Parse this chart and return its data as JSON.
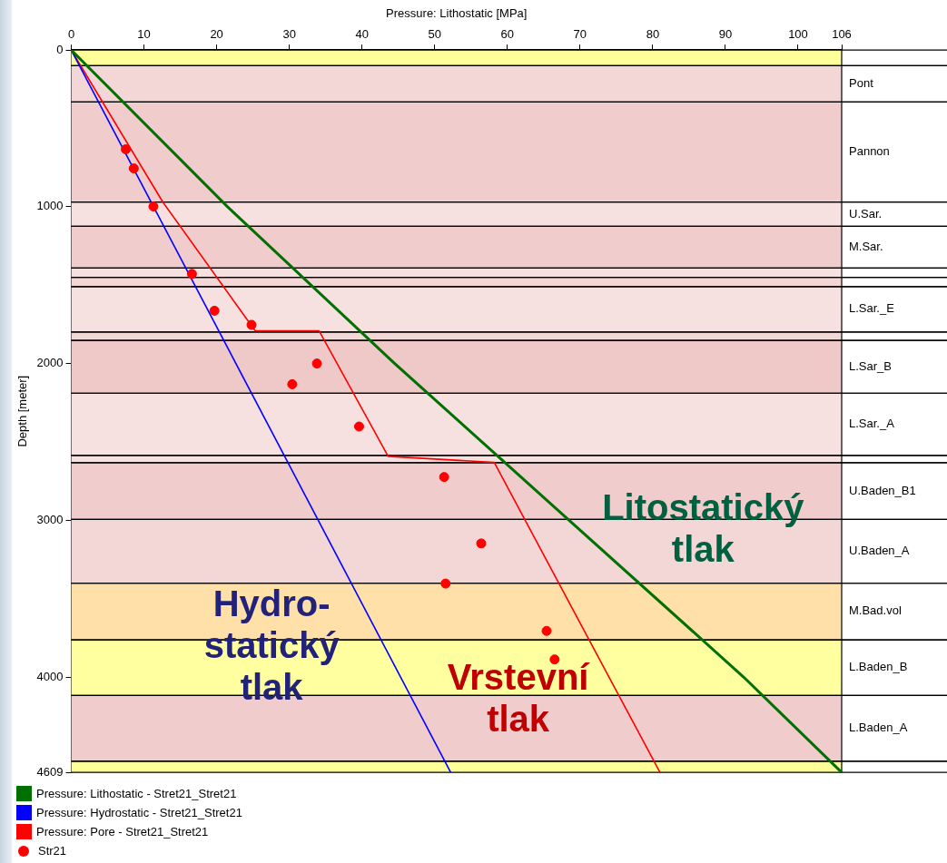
{
  "chart_data": {
    "type": "line",
    "xlabel": "Pressure: Lithostatic [MPa]",
    "ylabel": "Depth [meter]",
    "xlim": [
      0,
      106
    ],
    "xticks": [
      0,
      10,
      20,
      30,
      40,
      50,
      60,
      70,
      80,
      90,
      100,
      106
    ],
    "ylim": [
      4609,
      0
    ],
    "yticks": [
      0,
      1000,
      2000,
      3000,
      4000,
      4609
    ],
    "legend": "bottom left",
    "line_style": "solid",
    "series": [
      {
        "name": "Pressure: Lithostatic - Stret21_Stret21",
        "color": "#007000",
        "marker": "none",
        "x": [
          0,
          21.5,
          44.5,
          68.5,
          92.5,
          106
        ],
        "values": [
          0,
          1000,
          2000,
          3000,
          4000,
          4609
        ]
      },
      {
        "name": "Pressure: Hydrostatic - Stret21_Stret21",
        "color": "#0000ff",
        "marker": "none",
        "x": [
          0,
          52.2
        ],
        "values": [
          0,
          4609
        ]
      },
      {
        "name": "Pressure: Pore - Stret21_Stret21",
        "color": "#ff0000",
        "marker": "none",
        "x": [
          0,
          12.6,
          25.3,
          34.1,
          43.6,
          58.2,
          81.0
        ],
        "values": [
          0,
          970,
          1791,
          1791,
          2592,
          2631,
          4609
        ]
      },
      {
        "name": "Str21",
        "color": "#ff0000",
        "type": "scatter",
        "marker": "circle",
        "x": [
          7.5,
          8.6,
          11.3,
          16.6,
          19.7,
          24.8,
          33.8,
          30.4,
          39.6,
          51.3,
          56.4,
          51.5,
          65.4,
          66.5
        ],
        "values": [
          633,
          755,
          998,
          1428,
          1663,
          1753,
          2000,
          2132,
          2402,
          2724,
          3148,
          3404,
          3706,
          3888
        ]
      }
    ],
    "bands": [
      {
        "axis": "y",
        "from": 0,
        "to": 100,
        "color": "#ffff99"
      },
      {
        "axis": "y",
        "from": 100,
        "to": 331,
        "label": "Pont",
        "color": "#f3d6d6"
      },
      {
        "axis": "y",
        "from": 331,
        "to": 970,
        "label": "Pannon",
        "color": "#f0cccc"
      },
      {
        "axis": "y",
        "from": 970,
        "to": 1124,
        "label": "U.Sar.",
        "color": "#f6e0e0"
      },
      {
        "axis": "y",
        "from": 1124,
        "to": 1391,
        "label": "M.Sar.",
        "color": "#f0cccc"
      },
      {
        "axis": "y",
        "from": 1391,
        "to": 1450,
        "color": "#f6e0e0"
      },
      {
        "axis": "y",
        "from": 1450,
        "to": 1509,
        "color": "#f3d6d6"
      },
      {
        "axis": "y",
        "from": 1509,
        "to": 1799,
        "label": "L.Sar._E",
        "color": "#f6e0e0"
      },
      {
        "axis": "y",
        "from": 1799,
        "to": 1852,
        "color": "#f3d6d6"
      },
      {
        "axis": "y",
        "from": 1852,
        "to": 2189,
        "label": "L.Sar_B",
        "color": "#efc8c8"
      },
      {
        "axis": "y",
        "from": 2189,
        "to": 2586,
        "label": "L.Sar._A",
        "color": "#f6e0e0"
      },
      {
        "axis": "y",
        "from": 2586,
        "to": 2633,
        "color": "#f6e0e0"
      },
      {
        "axis": "y",
        "from": 2633,
        "to": 2994,
        "label": "U.Baden_B1",
        "color": "#f0cccc"
      },
      {
        "axis": "y",
        "from": 2994,
        "to": 3402,
        "label": "U.Baden_A",
        "color": "#f3d6d6"
      },
      {
        "axis": "y",
        "from": 3402,
        "to": 3763,
        "label": "M.Bad.vol",
        "color": "#ffe0a8"
      },
      {
        "axis": "y",
        "from": 3763,
        "to": 4118,
        "label": "L.Baden_B",
        "color": "#ffffa0"
      },
      {
        "axis": "y",
        "from": 4118,
        "to": 4538,
        "label": "L.Baden_A",
        "color": "#f0cccc"
      },
      {
        "axis": "y",
        "from": 4538,
        "to": 4609,
        "color": "#ffff99"
      }
    ],
    "annotations": [
      "Litostatický\ntlak",
      "Hydro-\nstatický\ntlak",
      "Vrstevní\ntlak"
    ]
  }
}
